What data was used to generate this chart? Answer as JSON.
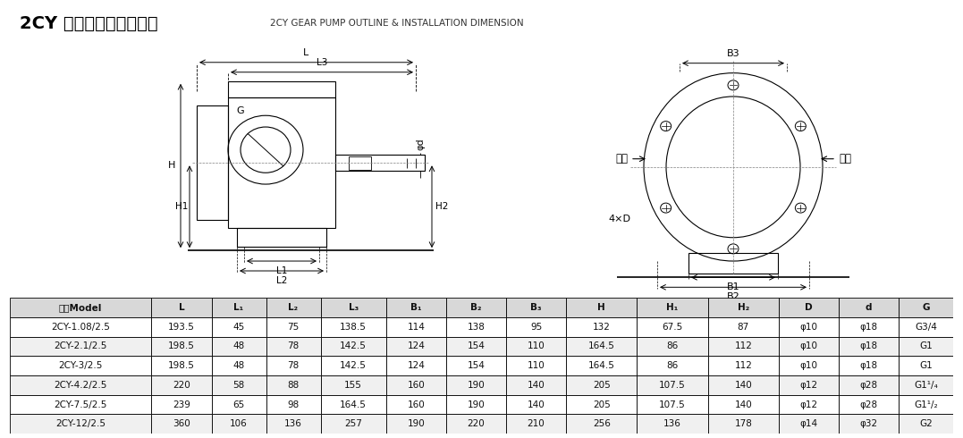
{
  "title_cn": "2CY 型泵外形、安装尺寸",
  "title_en": "2CY GEAR PUMP OUTLINE & INSTALLATION DIMENSION",
  "table_headers": [
    "型号Model",
    "L",
    "L₁",
    "L₂",
    "L₃",
    "B₁",
    "B₂",
    "B₃",
    "H",
    "H₁",
    "H₂",
    "D",
    "d",
    "G"
  ],
  "table_data": [
    [
      "2CY-1.08/2.5",
      "193.5",
      "45",
      "75",
      "138.5",
      "114",
      "138",
      "95",
      "132",
      "67.5",
      "87",
      "φ10",
      "φ18",
      "G3/4"
    ],
    [
      "2CY-2.1/2.5",
      "198.5",
      "48",
      "78",
      "142.5",
      "124",
      "154",
      "110",
      "164.5",
      "86",
      "112",
      "φ10",
      "φ18",
      "G1"
    ],
    [
      "2CY-3/2.5",
      "198.5",
      "48",
      "78",
      "142.5",
      "124",
      "154",
      "110",
      "164.5",
      "86",
      "112",
      "φ10",
      "φ18",
      "G1"
    ],
    [
      "2CY-4.2/2.5",
      "220",
      "58",
      "88",
      "155",
      "160",
      "190",
      "140",
      "205",
      "107.5",
      "140",
      "φ12",
      "φ28",
      "G1¹/₄"
    ],
    [
      "2CY-7.5/2.5",
      "239",
      "65",
      "98",
      "164.5",
      "160",
      "190",
      "140",
      "205",
      "107.5",
      "140",
      "φ12",
      "φ28",
      "G1¹/₂"
    ],
    [
      "2CY-12/2.5",
      "360",
      "106",
      "136",
      "257",
      "190",
      "220",
      "210",
      "256",
      "136",
      "178",
      "φ14",
      "φ32",
      "G2"
    ]
  ],
  "bg_color": "#ffffff",
  "line_color": "#000000",
  "table_header_bg": "#e8e8e8",
  "row_bg_alt": "#f5f5f5"
}
